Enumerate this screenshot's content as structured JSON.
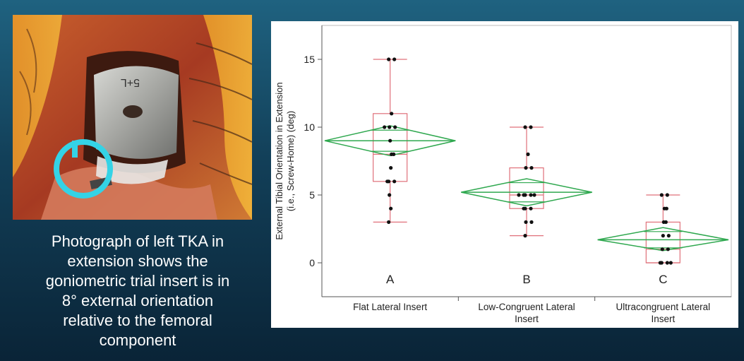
{
  "caption": "Photograph of left TKA in\nextension shows the\ngoniometric trial insert is in\n8° external orientation\nrelative to the femoral\ncomponent",
  "photo": {
    "implant_marking": "5+L",
    "colors": {
      "tissue": "#b4492a",
      "implant": "#a9aaa6",
      "circle_marker": "#34d3e6"
    }
  },
  "chart_data": {
    "type": "box-scatter",
    "title": "",
    "ylabel_lines": [
      "External Tibial Orientation in Extension",
      "(i.e., Screw-Home) (deg)"
    ],
    "xlabel": "",
    "ylim": [
      -2.5,
      17.5
    ],
    "yticks": [
      0,
      5,
      10,
      15
    ],
    "categories": [
      "Flat Lateral Insert",
      "Low-Congruent Lateral Insert",
      "Ultracongruent Lateral Insert"
    ],
    "category_label_lines": [
      [
        "Flat Lateral Insert"
      ],
      [
        "Low-Congruent Lateral",
        "Insert"
      ],
      [
        "Ultracongruent Lateral",
        "Insert"
      ]
    ],
    "group_letters": [
      "A",
      "B",
      "C"
    ],
    "boxes": [
      {
        "min": 3,
        "q1": 6,
        "median": 8,
        "q3": 11,
        "max": 15
      },
      {
        "min": 2,
        "q1": 4,
        "median": 5,
        "q3": 7,
        "max": 10
      },
      {
        "min": 0,
        "q1": 0,
        "median": 1,
        "q3": 3,
        "max": 5
      }
    ],
    "means": [
      {
        "mean": 9.0,
        "ci_low": 7.9,
        "ci_high": 10.1
      },
      {
        "mean": 5.2,
        "ci_low": 4.2,
        "ci_high": 6.2
      },
      {
        "mean": 1.7,
        "ci_low": 0.9,
        "ci_high": 2.6
      }
    ],
    "points": [
      [
        15,
        15,
        11,
        10,
        10,
        10,
        9,
        8,
        8,
        7,
        6,
        6,
        6,
        5,
        4,
        3
      ],
      [
        10,
        10,
        8,
        7,
        7,
        5,
        5,
        5,
        5,
        5,
        4,
        4,
        4,
        3,
        3,
        2
      ],
      [
        5,
        5,
        4,
        4,
        3,
        3,
        2,
        2,
        1,
        1,
        0,
        0,
        0,
        0
      ]
    ],
    "colors": {
      "box": "#e0707a",
      "diamond": "#2fa84f",
      "point": "#111111",
      "axis": "#555555"
    },
    "grid": false,
    "legend": "none"
  }
}
